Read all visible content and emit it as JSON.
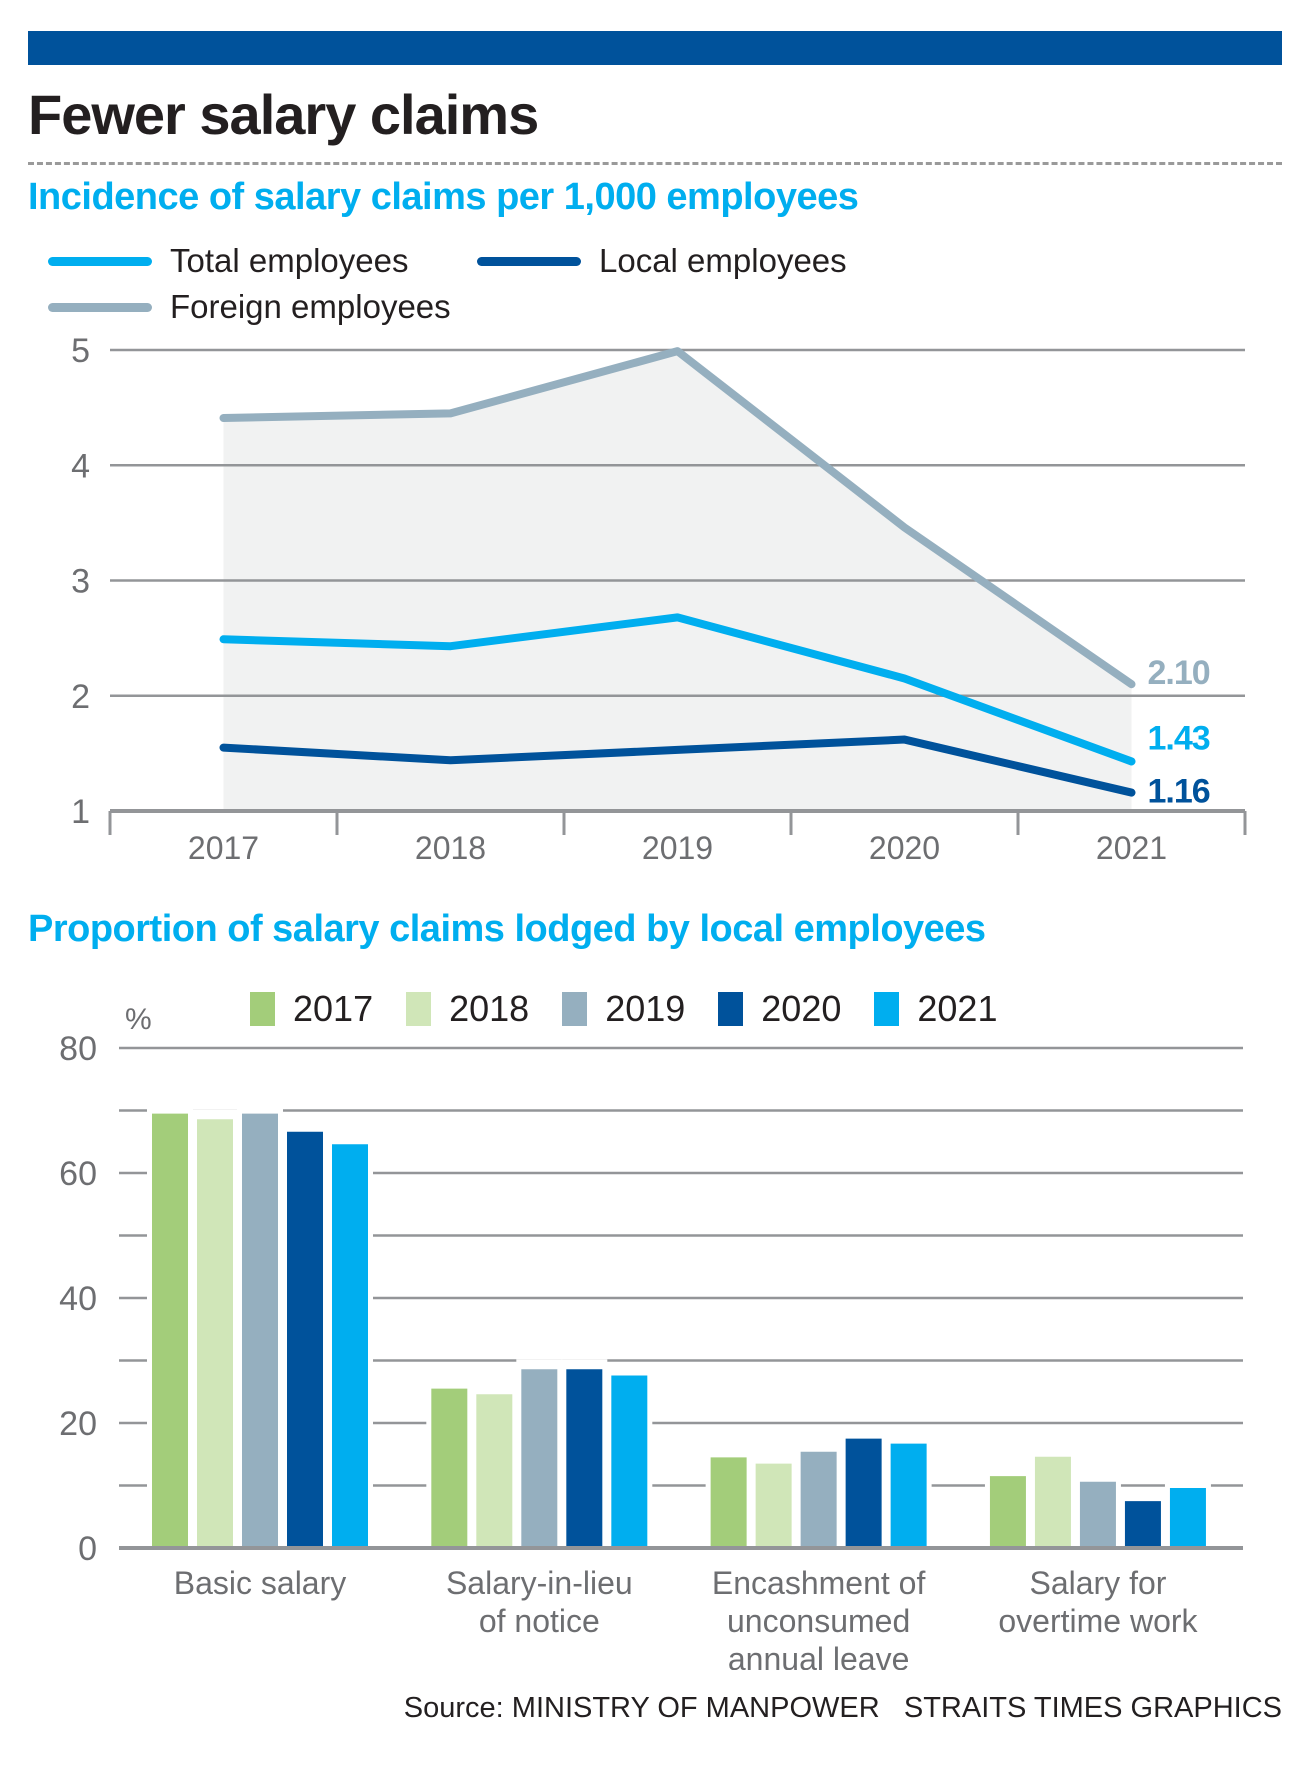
{
  "header": {
    "bar_color": "#00529b",
    "title": "Fewer salary claims"
  },
  "chart_data": [
    {
      "type": "line",
      "title": "Incidence of salary claims per 1,000 employees",
      "title_color": "#00aeef",
      "x": [
        "2017",
        "2018",
        "2019",
        "2020",
        "2021"
      ],
      "xlabel": "",
      "ylabel": "",
      "ylim": [
        1,
        5
      ],
      "yticks": [
        "1",
        "2",
        "3",
        "4",
        "5"
      ],
      "grid": true,
      "legend_position": "top-left",
      "series": [
        {
          "name": "Total employees",
          "color": "#00aeef",
          "values": [
            2.49,
            2.43,
            2.68,
            2.15,
            1.43
          ],
          "end_label": "1.43"
        },
        {
          "name": "Local employees",
          "color": "#00529b",
          "values": [
            1.55,
            1.44,
            1.53,
            1.62,
            1.16
          ],
          "end_label": "1.16"
        },
        {
          "name": "Foreign employees",
          "color": "#95afbf",
          "values": [
            4.41,
            4.45,
            4.99,
            3.46,
            2.1
          ],
          "end_label": "2.10",
          "area_fill": "#f1f2f2"
        }
      ]
    },
    {
      "type": "bar",
      "title": "Proportion of salary claims lodged by local employees",
      "title_color": "#00aeef",
      "unit_label": "%",
      "categories": [
        [
          "Basic salary"
        ],
        [
          "Salary-in-lieu",
          "of notice"
        ],
        [
          "Encashment of",
          "unconsumed",
          "annual leave"
        ],
        [
          "Salary for",
          "overtime work"
        ]
      ],
      "ylim": [
        0,
        80
      ],
      "yticks": [
        "0",
        "20",
        "40",
        "60",
        "80"
      ],
      "grid": true,
      "legend_position": "top",
      "series": [
        {
          "name": "2017",
          "color": "#a3cd7a",
          "values": [
            69.5,
            25.5,
            14.5,
            11.5
          ]
        },
        {
          "name": "2018",
          "color": "#d0e6b8",
          "values": [
            68.6,
            24.6,
            13.5,
            14.6
          ]
        },
        {
          "name": "2019",
          "color": "#95afbf",
          "values": [
            69.5,
            28.6,
            15.4,
            10.6
          ]
        },
        {
          "name": "2020",
          "color": "#00529b",
          "values": [
            66.6,
            28.6,
            17.5,
            7.5
          ]
        },
        {
          "name": "2021",
          "color": "#00aeef",
          "values": [
            64.6,
            27.6,
            16.7,
            9.6
          ]
        }
      ]
    }
  ],
  "footer": {
    "source": "Source: MINISTRY OF MANPOWER",
    "credit": "STRAITS TIMES GRAPHICS"
  }
}
